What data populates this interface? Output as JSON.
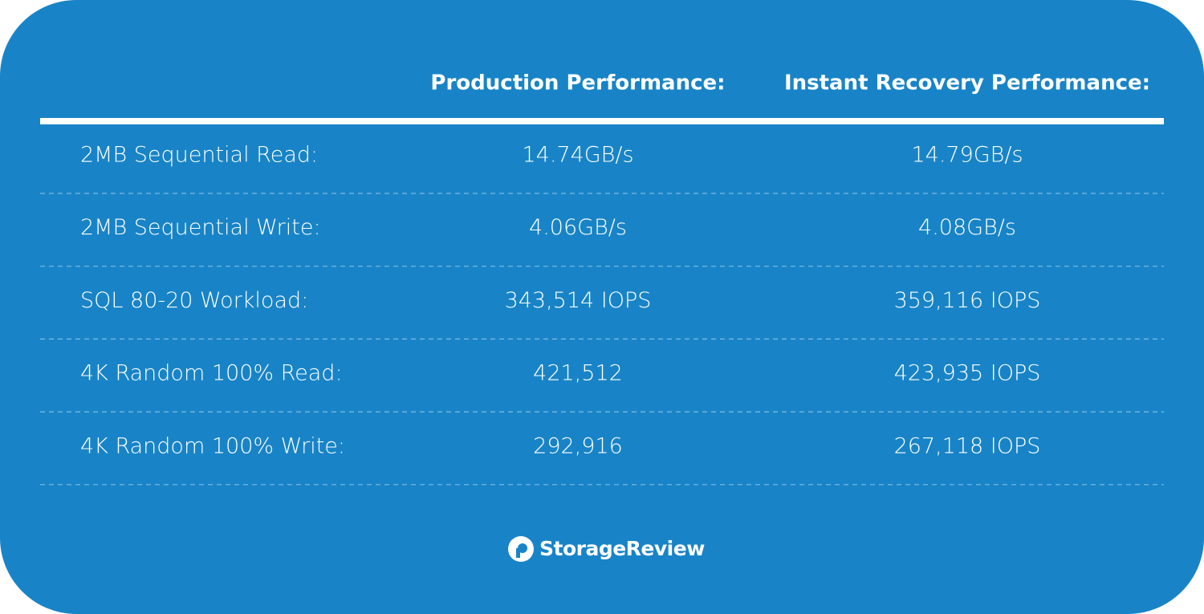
{
  "table": {
    "headers": [
      "Production Performance:",
      "Instant Recovery Performance:"
    ],
    "rows": [
      [
        "2MB Sequential Read:",
        "14.74GB/s",
        "14.79GB/s"
      ],
      [
        "2MB Sequential Write:",
        "4.06GB/s",
        "4.08GB/s"
      ],
      [
        "SQL 80-20 Workload:",
        "343,514 IOPS",
        "359,116 IOPS"
      ],
      [
        "4K Random 100% Read:",
        "421,512",
        "423,935 IOPS"
      ],
      [
        "4K Random 100% Write:",
        "292,916",
        "267,118 IOPS"
      ]
    ]
  },
  "footer": {
    "logo": "StorageReview"
  }
}
